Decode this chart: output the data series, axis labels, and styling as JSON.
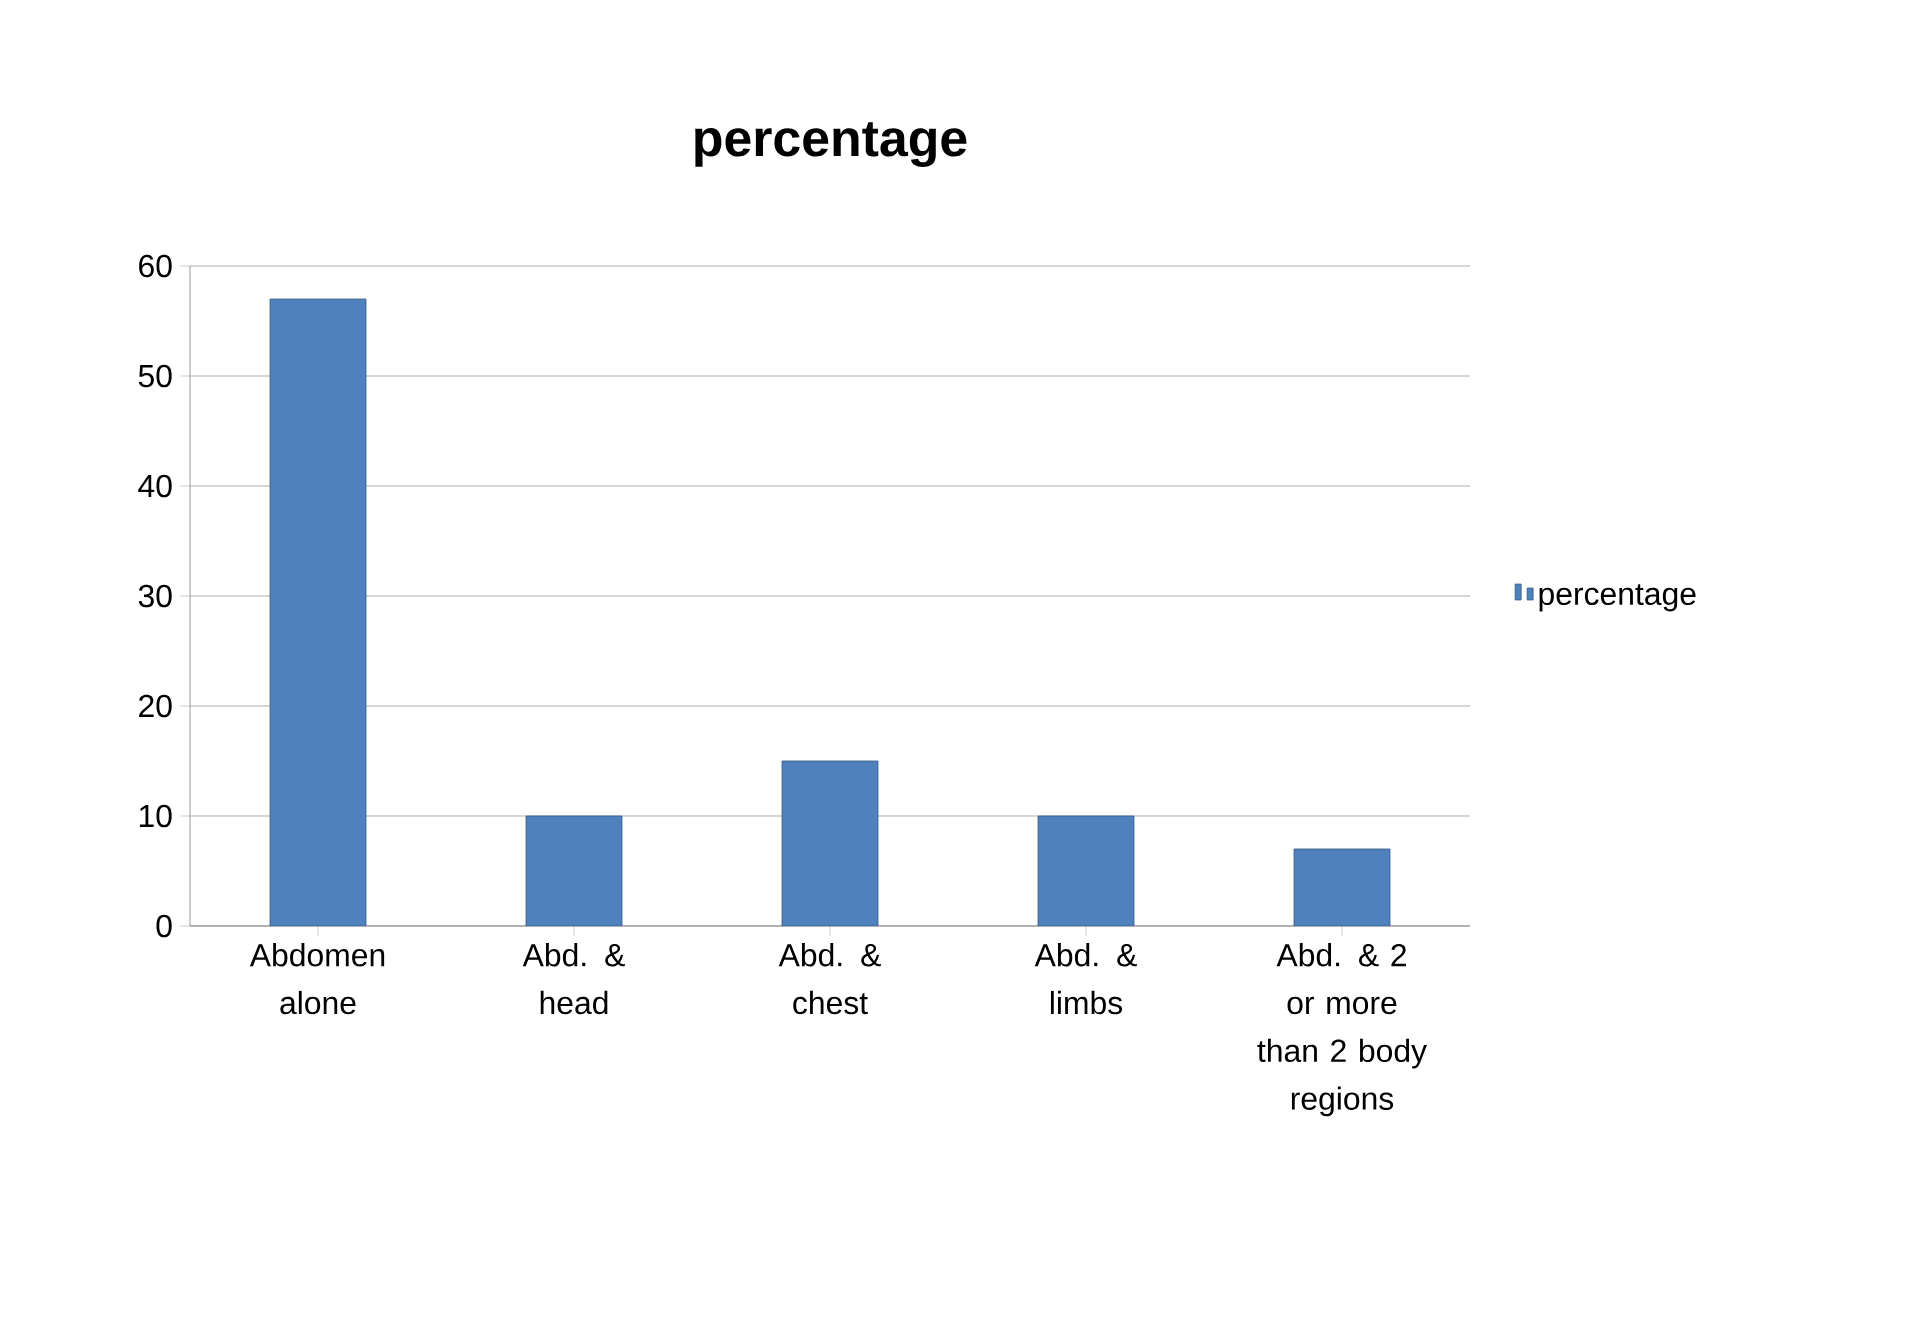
{
  "chart_data": {
    "type": "bar",
    "title": "percentage",
    "categories": [
      "Abdomen alone",
      "Abd. & head",
      "Abd. & chest",
      "Abd. & limbs",
      "Abd. & 2 or more than 2 body regions"
    ],
    "series": [
      {
        "name": "percentage",
        "color": "#4f81bd",
        "values": [
          57,
          10,
          15,
          10,
          7
        ]
      }
    ],
    "ylim": [
      0,
      60
    ],
    "yticks": [
      0,
      10,
      20,
      30,
      40,
      50,
      60
    ],
    "grid": "y",
    "legend": "right"
  }
}
